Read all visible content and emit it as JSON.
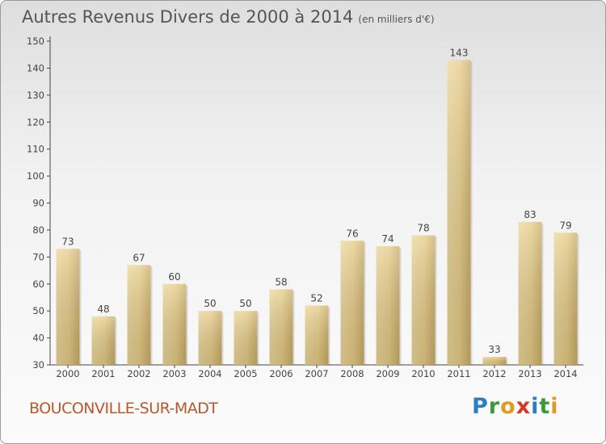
{
  "header": {
    "title": "Autres Revenus Divers de 2000 à 2014",
    "unit": "(en milliers d'€)"
  },
  "footer": {
    "commune": "BOUCONVILLE-SUR-MADT",
    "logo_letters": [
      "P",
      "r",
      "o",
      "x",
      "i",
      "t",
      "i"
    ],
    "logo_colors": [
      "#2e7dc2",
      "#3a9a3a",
      "#e39a1f",
      "#d23a2a",
      "#2e7dc2",
      "#3a9a3a",
      "#e39a1f"
    ]
  },
  "chart_data": {
    "type": "bar",
    "categories": [
      "2000",
      "2001",
      "2002",
      "2003",
      "2004",
      "2005",
      "2006",
      "2007",
      "2008",
      "2009",
      "2010",
      "2011",
      "2012",
      "2013",
      "2014"
    ],
    "values": [
      73,
      48,
      67,
      60,
      50,
      50,
      58,
      52,
      76,
      74,
      78,
      143,
      33,
      83,
      79
    ],
    "yticks": [
      30,
      40,
      50,
      60,
      70,
      80,
      90,
      100,
      110,
      120,
      130,
      140,
      150
    ],
    "ylim": [
      30,
      150
    ],
    "grid": false,
    "bar_color": "#e4c782"
  }
}
